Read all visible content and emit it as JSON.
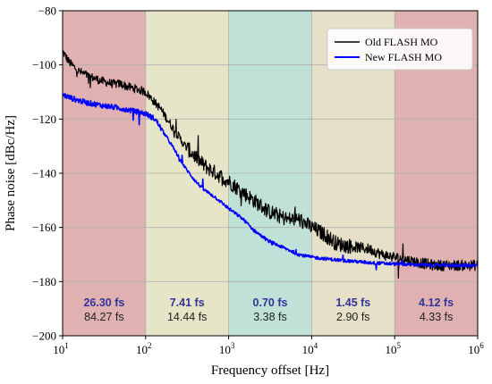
{
  "chart_data": {
    "type": "line",
    "title": "",
    "xlabel": "Frequency offset [Hz]",
    "ylabel": "Phase noise [dBc/Hz]",
    "xscale": "log",
    "xlim": [
      10,
      1000000
    ],
    "ylim": [
      -200,
      -80
    ],
    "x_ticks": [
      {
        "value": 10,
        "base": "10",
        "exp": "1"
      },
      {
        "value": 100,
        "base": "10",
        "exp": "2"
      },
      {
        "value": 1000,
        "base": "10",
        "exp": "3"
      },
      {
        "value": 10000,
        "base": "10",
        "exp": "4"
      },
      {
        "value": 100000,
        "base": "10",
        "exp": "5"
      },
      {
        "value": 1000000,
        "base": "10",
        "exp": "6"
      }
    ],
    "y_ticks": [
      "-80",
      "-100",
      "-120",
      "-140",
      "-160",
      "-180",
      "-200"
    ],
    "grid": true,
    "legend_position": "top-right",
    "series": [
      {
        "name": "Old FLASH MO",
        "color": "#000000",
        "points": [
          [
            10,
            -95
          ],
          [
            12,
            -99
          ],
          [
            15,
            -102
          ],
          [
            20,
            -104
          ],
          [
            30,
            -106
          ],
          [
            40,
            -107
          ],
          [
            50,
            -107
          ],
          [
            60,
            -108
          ],
          [
            80,
            -109
          ],
          [
            100,
            -110
          ],
          [
            130,
            -114
          ],
          [
            150,
            -116
          ],
          [
            200,
            -122
          ],
          [
            300,
            -130
          ],
          [
            500,
            -137
          ],
          [
            700,
            -140
          ],
          [
            1000,
            -143
          ],
          [
            2000,
            -150
          ],
          [
            3000,
            -154
          ],
          [
            5000,
            -157
          ],
          [
            7000,
            -157
          ],
          [
            10000,
            -160
          ],
          [
            15000,
            -163
          ],
          [
            20000,
            -166
          ],
          [
            30000,
            -167
          ],
          [
            50000,
            -168
          ],
          [
            70000,
            -170
          ],
          [
            100000,
            -171
          ],
          [
            200000,
            -173
          ],
          [
            300000,
            -174
          ],
          [
            500000,
            -174
          ],
          [
            1000000,
            -174
          ]
        ]
      },
      {
        "name": "New FLASH MO",
        "color": "#0000ff",
        "points": [
          [
            10,
            -111
          ],
          [
            12,
            -112
          ],
          [
            15,
            -113
          ],
          [
            20,
            -114
          ],
          [
            30,
            -115
          ],
          [
            50,
            -116
          ],
          [
            70,
            -117
          ],
          [
            100,
            -118
          ],
          [
            130,
            -120
          ],
          [
            150,
            -123
          ],
          [
            200,
            -129
          ],
          [
            300,
            -138
          ],
          [
            400,
            -143
          ],
          [
            500,
            -146
          ],
          [
            700,
            -149
          ],
          [
            1000,
            -153
          ],
          [
            1500,
            -157
          ],
          [
            2000,
            -161
          ],
          [
            3000,
            -165
          ],
          [
            5000,
            -168
          ],
          [
            7000,
            -170
          ],
          [
            10000,
            -171
          ],
          [
            20000,
            -172
          ],
          [
            50000,
            -173
          ],
          [
            100000,
            -173.5
          ],
          [
            300000,
            -174
          ],
          [
            1000000,
            -174
          ]
        ]
      }
    ],
    "regions": [
      {
        "from": 10,
        "to": 100,
        "color": "#d9a3a3",
        "new_jitter": "26.30 fs",
        "old_jitter": "84.27 fs"
      },
      {
        "from": 100,
        "to": 1000,
        "color": "#e3e0bd",
        "new_jitter": "7.41 fs",
        "old_jitter": "14.44 fs"
      },
      {
        "from": 1000,
        "to": 10000,
        "color": "#b5dcd0",
        "new_jitter": "0.70 fs",
        "old_jitter": "3.38 fs"
      },
      {
        "from": 10000,
        "to": 100000,
        "color": "#e1dbbd",
        "new_jitter": "1.45 fs",
        "old_jitter": "2.90 fs"
      },
      {
        "from": 100000,
        "to": 1000000,
        "color": "#d9a3a3",
        "new_jitter": "4.12 fs",
        "old_jitter": "4.33 fs"
      }
    ],
    "jitter_label_colors": {
      "new": "#333399",
      "old": "#222222"
    }
  }
}
